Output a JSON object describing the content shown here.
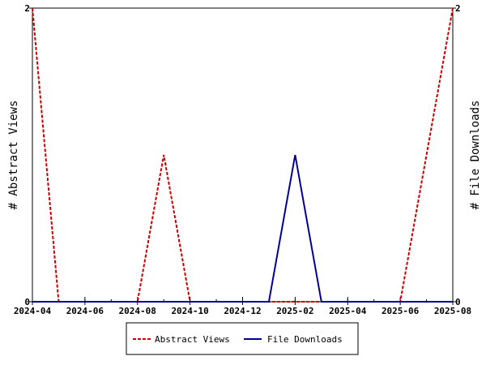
{
  "chart_data": {
    "type": "line",
    "x_ticks": [
      "2024-04",
      "2024-06",
      "2024-08",
      "2024-10",
      "2024-12",
      "2025-02",
      "2025-04",
      "2025-06",
      "2025-08"
    ],
    "xlim": [
      "2024-04",
      "2025-08"
    ],
    "y_left": {
      "label": "# Abstract Views",
      "ylim": [
        0,
        2
      ],
      "ticks": [
        "0",
        "2"
      ]
    },
    "y_right": {
      "label": "# File Downloads",
      "ylim": [
        0,
        2
      ],
      "ticks": [
        "0",
        "2"
      ]
    },
    "grid": false,
    "legend_position": "bottom",
    "series": [
      {
        "name": "Abstract Views",
        "axis": "left",
        "color": "#cc0000",
        "style": "dashed",
        "points": [
          {
            "x": "2024-04",
            "y": 2
          },
          {
            "x": "2024-05",
            "y": 0
          },
          {
            "x": "2024-06",
            "y": 0
          },
          {
            "x": "2024-07",
            "y": 0
          },
          {
            "x": "2024-08",
            "y": 0
          },
          {
            "x": "2024-09",
            "y": 1
          },
          {
            "x": "2024-10",
            "y": 0
          },
          {
            "x": "2024-11",
            "y": 0
          },
          {
            "x": "2024-12",
            "y": 0
          },
          {
            "x": "2025-01",
            "y": 0
          },
          {
            "x": "2025-02",
            "y": 0
          },
          {
            "x": "2025-03",
            "y": 0
          },
          {
            "x": "2025-04",
            "y": 0
          },
          {
            "x": "2025-05",
            "y": 0
          },
          {
            "x": "2025-06",
            "y": 0
          },
          {
            "x": "2025-07",
            "y": 1
          },
          {
            "x": "2025-08",
            "y": 2
          }
        ]
      },
      {
        "name": "File Downloads",
        "axis": "right",
        "color": "#000099",
        "style": "solid",
        "points": [
          {
            "x": "2024-04",
            "y": 0
          },
          {
            "x": "2024-05",
            "y": 0
          },
          {
            "x": "2024-06",
            "y": 0
          },
          {
            "x": "2024-07",
            "y": 0
          },
          {
            "x": "2024-08",
            "y": 0
          },
          {
            "x": "2024-09",
            "y": 0
          },
          {
            "x": "2024-10",
            "y": 0
          },
          {
            "x": "2024-11",
            "y": 0
          },
          {
            "x": "2024-12",
            "y": 0
          },
          {
            "x": "2025-01",
            "y": 0
          },
          {
            "x": "2025-02",
            "y": 1
          },
          {
            "x": "2025-03",
            "y": 0
          },
          {
            "x": "2025-04",
            "y": 0
          },
          {
            "x": "2025-05",
            "y": 0
          },
          {
            "x": "2025-06",
            "y": 0
          },
          {
            "x": "2025-07",
            "y": 0
          },
          {
            "x": "2025-08",
            "y": 0
          }
        ]
      }
    ]
  }
}
